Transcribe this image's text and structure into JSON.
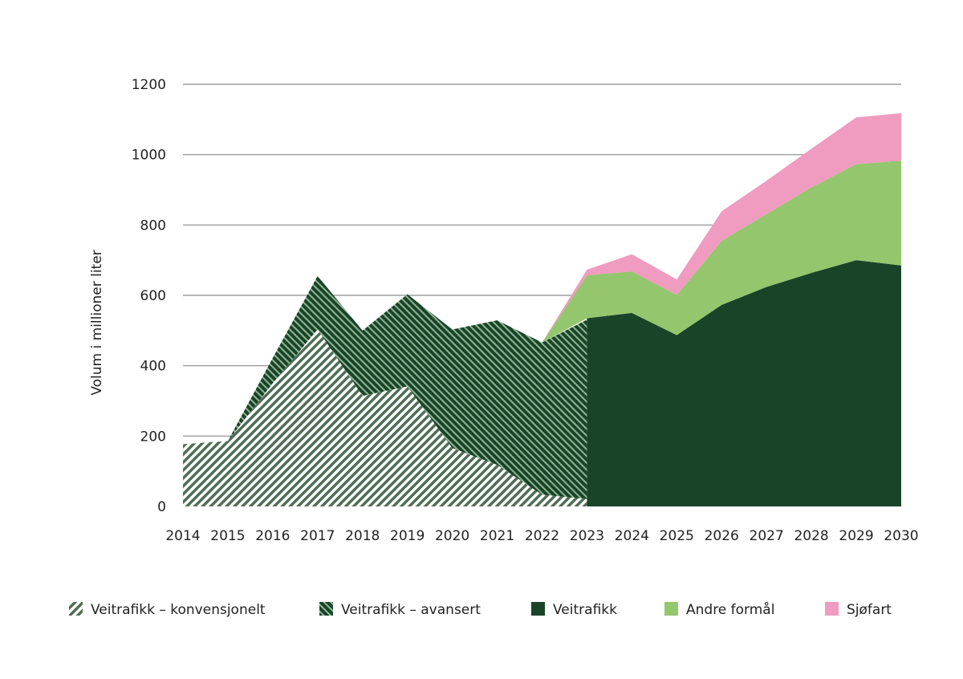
{
  "chart_data": {
    "type": "area",
    "stacked": true,
    "title": "",
    "xlabel": "",
    "ylabel": "Volum i millioner liter",
    "ylim": [
      0,
      1200
    ],
    "yticks": [
      "0",
      "200",
      "400",
      "600",
      "800",
      "1000",
      "1200"
    ],
    "grid": "horizontal",
    "legend_position": "bottom",
    "x": [
      "2014",
      "2015",
      "2016",
      "2017",
      "2018",
      "2019",
      "2020",
      "2021",
      "2022",
      "2023",
      "2024",
      "2025",
      "2026",
      "2027",
      "2028",
      "2029",
      "2030"
    ],
    "series": [
      {
        "name": "Veitrafikk – konvensjonelt",
        "color": "#4f6e55",
        "pattern": "hatch-light",
        "values": [
          177,
          186,
          350,
          503,
          314,
          341,
          166,
          118,
          33,
          21,
          null,
          null,
          null,
          null,
          null,
          null,
          null
        ]
      },
      {
        "name": "Veitrafikk – avansert",
        "color": "#1a4428",
        "pattern": "hatch-dark",
        "values": [
          0,
          0,
          72,
          152,
          186,
          262,
          337,
          411,
          433,
          510,
          null,
          null,
          null,
          null,
          null,
          null,
          null
        ]
      },
      {
        "name": "Veitrafikk",
        "color": "#1a4428",
        "values": [
          null,
          null,
          null,
          null,
          null,
          null,
          null,
          null,
          null,
          535,
          550,
          487,
          573,
          624,
          664,
          700,
          685
        ]
      },
      {
        "name": "Andre formål",
        "color": "#94c66e",
        "values": [
          null,
          null,
          null,
          null,
          null,
          null,
          null,
          null,
          0,
          122,
          118,
          114,
          182,
          207,
          243,
          273,
          298
        ]
      },
      {
        "name": "Sjøfart",
        "color": "#f09bc0",
        "values": [
          null,
          null,
          null,
          null,
          null,
          null,
          null,
          null,
          0,
          16,
          49,
          44,
          84,
          95,
          110,
          133,
          135
        ]
      }
    ]
  }
}
